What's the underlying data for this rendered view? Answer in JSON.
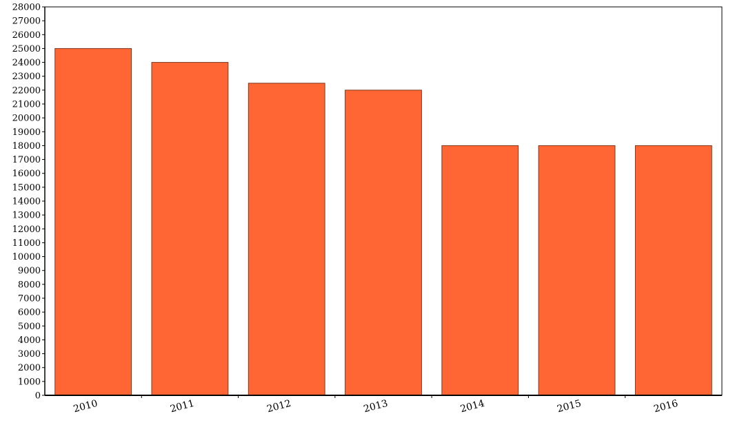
{
  "chart_data": {
    "type": "bar",
    "title": "",
    "xlabel": "",
    "ylabel": "",
    "categories": [
      "2010",
      "2011",
      "2012",
      "2013",
      "2014",
      "2015",
      "2016"
    ],
    "series": [
      {
        "values": [
          25000,
          24000,
          22500,
          22000,
          18000,
          18000,
          18000
        ]
      }
    ],
    "ylim": [
      0,
      28000
    ],
    "y_tick_step": 1000,
    "y_tick_labels": [
      "0",
      "1000",
      "2000",
      "3000",
      "4000",
      "5000",
      "6000",
      "7000",
      "8000",
      "9000",
      "10000",
      "11000",
      "12000",
      "13000",
      "14000",
      "15000",
      "16000",
      "17000",
      "18000",
      "19000",
      "20000",
      "21000",
      "22000",
      "23000",
      "24000",
      "25000",
      "26000",
      "27000",
      "28000"
    ],
    "grid": false,
    "legend": "none",
    "bar_color": "#ff6633",
    "bar_edge_color": "#7a3a20",
    "axis_color": "#000000"
  }
}
